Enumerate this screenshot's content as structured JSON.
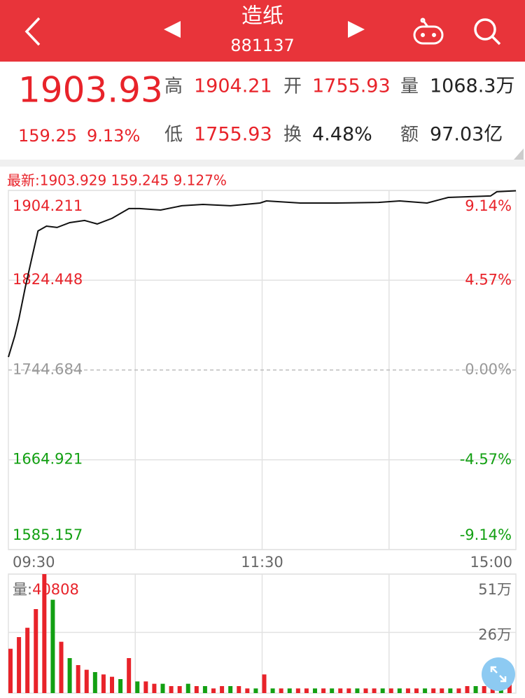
{
  "header": {
    "title": "造纸",
    "code": "881137"
  },
  "quote": {
    "price": "1903.93",
    "change": "159.25",
    "change_pct": "9.13%",
    "color": "#e8232a",
    "fields": [
      {
        "label": "高",
        "value": "1904.21",
        "color": "#e8232a"
      },
      {
        "label": "开",
        "value": "1755.93",
        "color": "#e8232a"
      },
      {
        "label": "量",
        "value": "1068.3万",
        "color": "#222222"
      },
      {
        "label": "低",
        "value": "1755.93",
        "color": "#e8232a"
      },
      {
        "label": "换",
        "value": "4.48%",
        "color": "#222222"
      },
      {
        "label": "额",
        "value": "97.03亿",
        "color": "#222222"
      }
    ]
  },
  "latest": "最新:1903.929 159.245 9.127%",
  "chart_data": [
    {
      "type": "line",
      "x": [
        0,
        3,
        5,
        8,
        11,
        14,
        18,
        23,
        29,
        36,
        42,
        49,
        57,
        62,
        72,
        82,
        92,
        105,
        119,
        122,
        138,
        155,
        175,
        185,
        198,
        208,
        228,
        231,
        240
      ],
      "series": [
        {
          "color": "#111111",
          "values": [
            1756.2,
            1774.9,
            1790.4,
            1818.4,
            1843.3,
            1868.2,
            1872.5,
            1871.3,
            1875.6,
            1877.5,
            1874.4,
            1879.4,
            1888.1,
            1888.1,
            1886.8,
            1890.6,
            1891.8,
            1890.6,
            1893.0,
            1894.9,
            1893.0,
            1893.0,
            1893.6,
            1894.9,
            1893.0,
            1898.0,
            1899.3,
            1903.0,
            1903.9
          ]
        }
      ],
      "xlim": [
        0,
        240
      ],
      "xticks": [
        {
          "value": 0,
          "label": "09:30"
        },
        {
          "value": 120,
          "label": "11:30"
        },
        {
          "value": 240,
          "label": "15:00"
        }
      ],
      "xgrid": [
        60,
        120,
        180
      ],
      "ylim": [
        1585.157,
        1904.211
      ],
      "yticks": [
        1585.157,
        1664.921,
        1744.684,
        1824.448,
        1904.211
      ],
      "y2lim": [
        -9.14,
        9.14
      ],
      "y2ticks": [
        {
          "value": -9.14,
          "label": "-9.14%"
        },
        {
          "value": -4.57,
          "label": "-4.57%"
        },
        {
          "value": 0,
          "label": "0.00%"
        },
        {
          "value": 4.57,
          "label": "4.57%"
        },
        {
          "value": 9.14,
          "label": "9.14%"
        }
      ],
      "up_color": "#e8232a",
      "down_color": "#13a013",
      "flat_color": "#999999"
    },
    {
      "type": "bar",
      "label": "量:",
      "current": "40808",
      "x": [
        0,
        4,
        8,
        12,
        16,
        20,
        24,
        28,
        32,
        36,
        40,
        44,
        48,
        52,
        56,
        60,
        64,
        68,
        72,
        76,
        80,
        84,
        88,
        92,
        96,
        100,
        104,
        108,
        112,
        116,
        120,
        124,
        128,
        132,
        136,
        140,
        144,
        148,
        152,
        156,
        160,
        164,
        168,
        172,
        176,
        180,
        184,
        188,
        192,
        196,
        200,
        204,
        208,
        212,
        216,
        220,
        224,
        228,
        232,
        236
      ],
      "values": [
        19,
        24,
        28,
        36,
        51,
        40,
        22,
        15,
        12,
        10,
        9,
        8,
        7,
        6,
        15,
        5,
        5,
        4,
        4,
        3,
        3,
        4,
        3,
        3,
        2,
        3,
        3,
        3,
        2,
        2,
        8,
        2,
        2,
        2,
        2,
        2,
        2,
        2,
        2,
        2,
        2,
        2,
        2,
        2,
        2,
        2,
        2,
        2,
        2,
        2,
        2,
        2,
        2,
        2,
        3,
        3,
        3,
        4,
        3,
        4
      ],
      "colors": [
        "#e8232a",
        "#e8232a",
        "#e8232a",
        "#e8232a",
        "#e8232a",
        "#13a013",
        "#e8232a",
        "#13a013",
        "#e8232a",
        "#e8232a",
        "#13a013",
        "#e8232a",
        "#e8232a",
        "#13a013",
        "#e8232a",
        "#13a013",
        "#e8232a",
        "#e8232a",
        "#13a013",
        "#e8232a",
        "#e8232a",
        "#13a013",
        "#e8232a",
        "#13a013",
        "#e8232a",
        "#e8232a",
        "#13a013",
        "#e8232a",
        "#e8232a",
        "#13a013",
        "#e8232a",
        "#13a013",
        "#e8232a",
        "#13a013",
        "#e8232a",
        "#e8232a",
        "#13a013",
        "#e8232a",
        "#13a013",
        "#e8232a",
        "#e8232a",
        "#13a013",
        "#e8232a",
        "#e8232a",
        "#13a013",
        "#e8232a",
        "#13a013",
        "#e8232a",
        "#e8232a",
        "#13a013",
        "#e8232a",
        "#e8232a",
        "#13a013",
        "#e8232a",
        "#e8232a",
        "#13a013",
        "#e8232a",
        "#e8232a",
        "#13a013",
        "#e8232a"
      ],
      "xlim": [
        0,
        240
      ],
      "ylim": [
        0,
        51
      ],
      "yticks": [
        {
          "value": 26,
          "label": "26万"
        },
        {
          "value": 51,
          "label": "51万"
        }
      ]
    }
  ]
}
